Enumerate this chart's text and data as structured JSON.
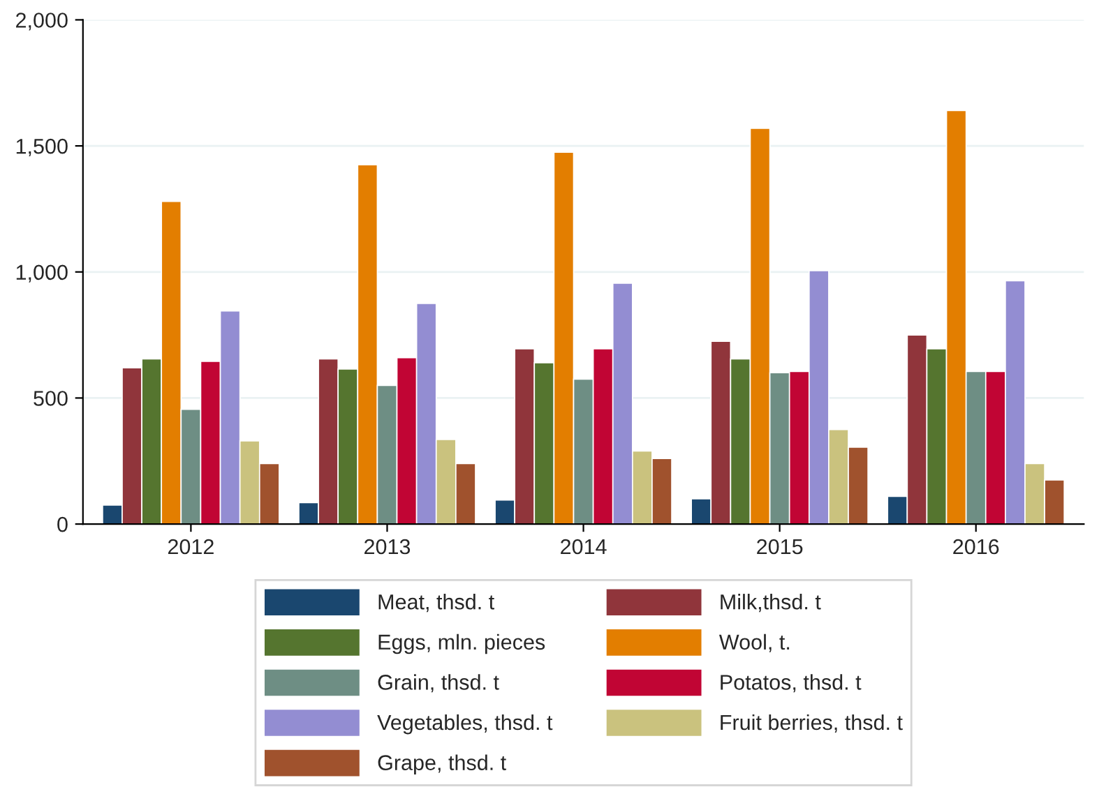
{
  "chart_data": {
    "type": "bar",
    "categories": [
      "2012",
      "2013",
      "2014",
      "2015",
      "2016"
    ],
    "series": [
      {
        "name": "Meat, thsd. t",
        "color": "#1a476f",
        "values": [
          75,
          85,
          95,
          100,
          110
        ]
      },
      {
        "name": "Milk,thsd. t",
        "color": "#90353b",
        "values": [
          620,
          655,
          695,
          725,
          750
        ]
      },
      {
        "name": "Eggs, mln. pieces",
        "color": "#55752f",
        "values": [
          655,
          615,
          640,
          655,
          695
        ]
      },
      {
        "name": "Wool, t.",
        "color": "#e37e00",
        "values": [
          1280,
          1425,
          1475,
          1570,
          1640
        ]
      },
      {
        "name": "Grain, thsd. t",
        "color": "#6e8e84",
        "values": [
          455,
          550,
          575,
          600,
          605
        ]
      },
      {
        "name": "Potatos, thsd. t",
        "color": "#c10534",
        "values": [
          645,
          660,
          695,
          605,
          605
        ]
      },
      {
        "name": "Vegetables, thsd. t",
        "color": "#938dd2",
        "values": [
          845,
          875,
          955,
          1005,
          965
        ]
      },
      {
        "name": "Fruit berries, thsd. t",
        "color": "#cac27e",
        "values": [
          330,
          335,
          290,
          375,
          240
        ]
      },
      {
        "name": "Grape, thsd. t",
        "color": "#a0522d",
        "values": [
          240,
          240,
          260,
          305,
          175
        ]
      }
    ],
    "ylim": [
      0,
      2000
    ],
    "yticks": [
      {
        "value": 0,
        "label": "0"
      },
      {
        "value": 500,
        "label": "500"
      },
      {
        "value": 1000,
        "label": "1,000"
      },
      {
        "value": 1500,
        "label": "1,500"
      },
      {
        "value": 2000,
        "label": "2,000"
      }
    ],
    "grid": "y",
    "legend": "bottom"
  }
}
